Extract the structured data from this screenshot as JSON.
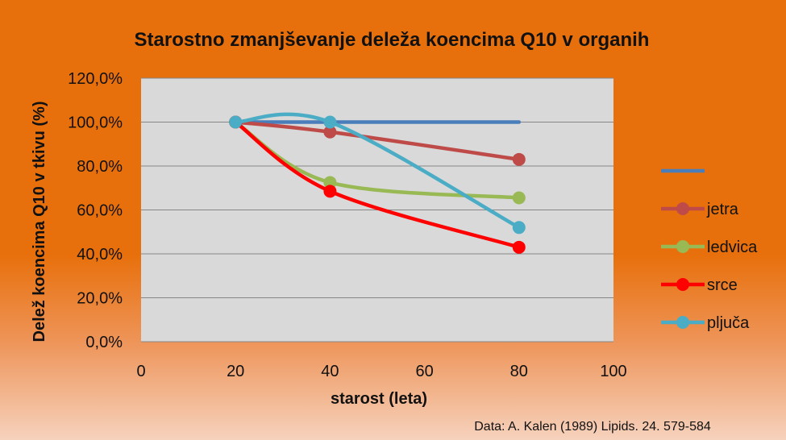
{
  "chart_data": {
    "type": "line",
    "title": "Starostno zmanjševanje deleža koencima Q10 v organih",
    "xlabel": "starost (leta)",
    "ylabel": "Delež koencima Q10 v tkivu (%)",
    "xlim": [
      0,
      100
    ],
    "ylim": [
      0,
      1.2
    ],
    "x_ticks": [
      "0",
      "20",
      "40",
      "60",
      "80",
      "100"
    ],
    "y_ticks": [
      "0,0%",
      "20,0%",
      "40,0%",
      "60,0%",
      "80,0%",
      "100,0%",
      "120,0%"
    ],
    "grid": true,
    "smooth": true,
    "legend_position": "right",
    "series": [
      {
        "name": "",
        "color": "#4a7ebb",
        "markers": false,
        "x": [
          20,
          40,
          80
        ],
        "y": [
          1.0,
          1.0,
          1.0
        ]
      },
      {
        "name": "jetra",
        "color": "#be4b48",
        "markers": true,
        "x": [
          20,
          40,
          80
        ],
        "y": [
          1.0,
          0.955,
          0.83
        ]
      },
      {
        "name": "ledvica",
        "color": "#98b954",
        "markers": true,
        "x": [
          20,
          40,
          80
        ],
        "y": [
          1.0,
          0.725,
          0.655
        ]
      },
      {
        "name": "srce",
        "color": "#ff0000",
        "markers": true,
        "x": [
          20,
          40,
          80
        ],
        "y": [
          1.0,
          0.685,
          0.43
        ]
      },
      {
        "name": "pljuča",
        "color": "#4bacc6",
        "markers": true,
        "x": [
          20,
          40,
          80
        ],
        "y": [
          1.0,
          1.0,
          0.52
        ]
      }
    ],
    "source_note": "Data: A. Kalen (1989) Lipids. 24. 579-584"
  }
}
